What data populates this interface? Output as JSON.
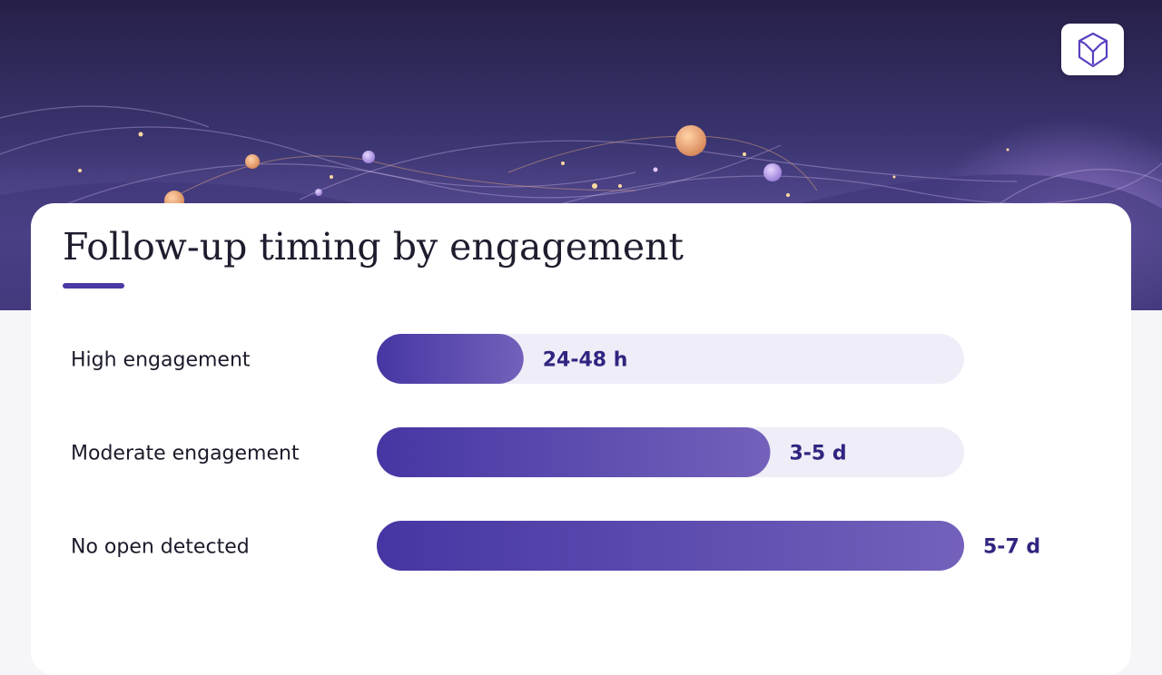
{
  "slide": {
    "title": "Follow-up timing by engagement"
  },
  "colors": {
    "bar_start": "#4536a3",
    "bar_end": "#7461bb",
    "track": "#efedf7",
    "accent": "#4a3aa6",
    "value_text": "#2f2580"
  },
  "chart_data": {
    "type": "bar",
    "orientation": "horizontal",
    "categories": [
      "High engagement",
      "Moderate engagement",
      "No open detected"
    ],
    "values": [
      0.25,
      0.67,
      1.0
    ],
    "value_labels": [
      "24-48 h",
      "3-5 d",
      "5-7 d"
    ],
    "xlim": [
      0,
      1
    ],
    "title": "Follow-up timing by engagement",
    "grid": false,
    "legend": "none"
  }
}
